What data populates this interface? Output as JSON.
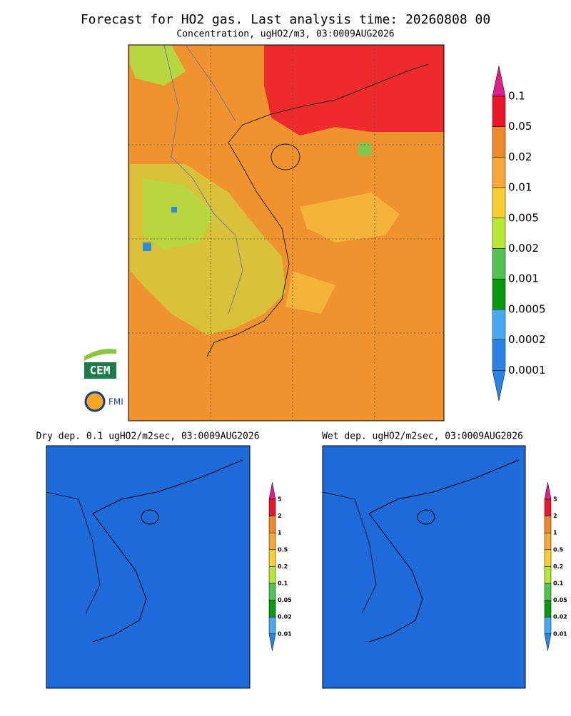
{
  "header": {
    "title": "Forecast for HO2 gas. Last analysis time: 20260808 00",
    "subtitle": "Concentration, ugHO2/m3, 03:0009AUG2026"
  },
  "main_colorbar": {
    "labels": [
      "0.1",
      "0.05",
      "0.02",
      "0.01",
      "0.005",
      "0.002",
      "0.001",
      "0.0005",
      "0.0002",
      "0.0001"
    ]
  },
  "panels": [
    {
      "title": "Dry dep. 0.1 ugHO2/m2sec, 03:0009AUG2026",
      "colorbar": {
        "labels": [
          "5",
          "2",
          "1",
          "0.5",
          "0.2",
          "0.1",
          "0.05",
          "0.02",
          "0.01"
        ]
      }
    },
    {
      "title": "Wet dep. ugHO2/m2sec, 03:0009AUG2026",
      "colorbar": {
        "labels": [
          "5",
          "2",
          "1",
          "0.5",
          "0.2",
          "0.1",
          "0.05",
          "0.02",
          "0.01"
        ]
      }
    }
  ],
  "logos": {
    "cem": "CEM",
    "fmi": "FMI"
  }
}
